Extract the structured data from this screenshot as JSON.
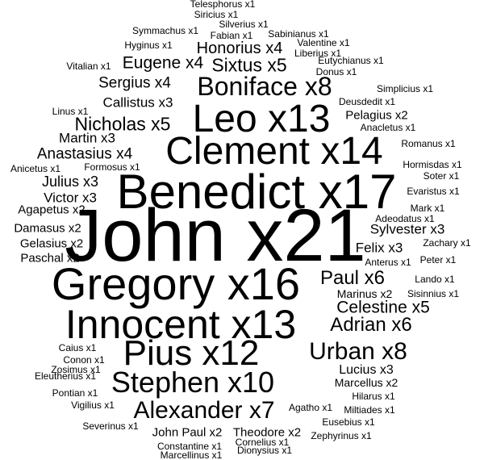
{
  "text_color": "#000000",
  "background": "#ffffff",
  "words": [
    {
      "text": "John x21"
    },
    {
      "text": "Benedict x17"
    },
    {
      "text": "Gregory x16"
    },
    {
      "text": "Clement x14"
    },
    {
      "text": "Leo x13"
    },
    {
      "text": "Innocent x13"
    },
    {
      "text": "Pius x12"
    },
    {
      "text": "Stephen x10"
    },
    {
      "text": "Boniface x8"
    },
    {
      "text": "Urban x8"
    },
    {
      "text": "Alexander x7"
    },
    {
      "text": "Paul x6"
    },
    {
      "text": "Adrian x6"
    },
    {
      "text": "Nicholas x5"
    },
    {
      "text": "Sixtus x5"
    },
    {
      "text": "Celestine x5"
    },
    {
      "text": "Honorius x4"
    },
    {
      "text": "Eugene x4"
    },
    {
      "text": "Sergius x4"
    },
    {
      "text": "Anastasius x4"
    },
    {
      "text": "Callistus x3"
    },
    {
      "text": "Martin x3"
    },
    {
      "text": "Julius x3"
    },
    {
      "text": "Victor x3"
    },
    {
      "text": "Felix x3"
    },
    {
      "text": "Sylvester x3"
    },
    {
      "text": "Lucius x3"
    },
    {
      "text": "Pelagius x2"
    },
    {
      "text": "Agapetus x2"
    },
    {
      "text": "Damasus x2"
    },
    {
      "text": "Gelasius x2"
    },
    {
      "text": "Paschal x2"
    },
    {
      "text": "Marinus x2"
    },
    {
      "text": "Marcellus x2"
    },
    {
      "text": "John Paul x2"
    },
    {
      "text": "Theodore x2"
    },
    {
      "text": "Telesphorus x1"
    },
    {
      "text": "Siricius x1"
    },
    {
      "text": "Silverius x1"
    },
    {
      "text": "Symmachus x1"
    },
    {
      "text": "Fabian x1"
    },
    {
      "text": "Sabinianus x1"
    },
    {
      "text": "Hyginus x1"
    },
    {
      "text": "Valentine x1"
    },
    {
      "text": "Liberius x1"
    },
    {
      "text": "Vitalian x1"
    },
    {
      "text": "Eutychianus x1"
    },
    {
      "text": "Donus x1"
    },
    {
      "text": "Simplicius x1"
    },
    {
      "text": "Deusdedit x1"
    },
    {
      "text": "Linus x1"
    },
    {
      "text": "Anacletus x1"
    },
    {
      "text": "Romanus x1"
    },
    {
      "text": "Anicetus x1"
    },
    {
      "text": "Formosus x1"
    },
    {
      "text": "Hormisdas x1"
    },
    {
      "text": "Soter x1"
    },
    {
      "text": "Evaristus x1"
    },
    {
      "text": "Mark x1"
    },
    {
      "text": "Adeodatus x1"
    },
    {
      "text": "Zachary x1"
    },
    {
      "text": "Peter x1"
    },
    {
      "text": "Anterus x1"
    },
    {
      "text": "Lando x1"
    },
    {
      "text": "Sisinnius x1"
    },
    {
      "text": "Caius x1"
    },
    {
      "text": "Conon x1"
    },
    {
      "text": "Zosimus x1"
    },
    {
      "text": "Eleutherius x1"
    },
    {
      "text": "Pontian x1"
    },
    {
      "text": "Vigilius x1"
    },
    {
      "text": "Severinus x1"
    },
    {
      "text": "Agatho x1"
    },
    {
      "text": "Miltiades x1"
    },
    {
      "text": "Hilarus x1"
    },
    {
      "text": "Eusebius x1"
    },
    {
      "text": "Zephyrinus x1"
    },
    {
      "text": "Cornelius x1"
    },
    {
      "text": "Constantine x1"
    },
    {
      "text": "Marcellinus x1"
    },
    {
      "text": "Dionysius x1"
    }
  ]
}
